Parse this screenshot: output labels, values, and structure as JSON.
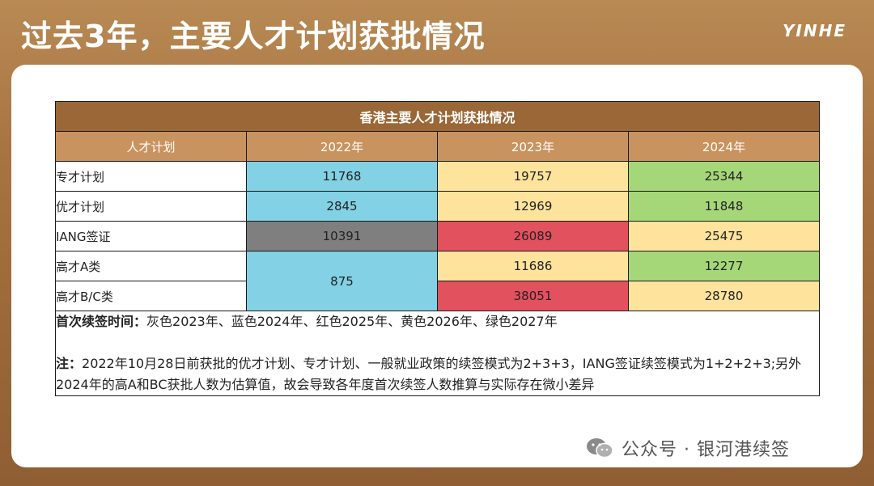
{
  "header": {
    "title": "过去3年，主要人才计划获批情况",
    "logo": "YINHE"
  },
  "table": {
    "caption": "香港主要人才计划获批情况",
    "columns": [
      "人才计划",
      "2022年",
      "2023年",
      "2024年"
    ],
    "rows": [
      {
        "name": "专才计划",
        "v2022": "11768",
        "v2023": "19757",
        "v2024": "25344"
      },
      {
        "name": "优才计划",
        "v2022": "2845",
        "v2023": "12969",
        "v2024": "11848"
      },
      {
        "name": "IANG签证",
        "v2022": "10391",
        "v2023": "26089",
        "v2024": "25475"
      },
      {
        "name": "高才A类",
        "v2022": "875",
        "v2023": "11686",
        "v2024": "12277"
      },
      {
        "name": "高才B/C类",
        "v2023": "38051",
        "v2024": "28780"
      }
    ],
    "colors": {
      "grey": "#7f7f7f",
      "blue": "#82d1e4",
      "red": "#e2515e",
      "yellow": "#fde39c",
      "green": "#a5d779"
    },
    "renewal_label": "首次续签时间：",
    "renewal_text": "灰色2023年、蓝色2024年、红色2025年、黄色2026年、绿色2027年",
    "note_label": "注：",
    "note_text": "2022年10月28日前获批的优才计划、专才计划、一般就业政策的续签模式为2+3+3，IANG签证续签模式为1+2+2+3;另外2024年的高A和BC获批人数为估算值，故会导致各年度首次续签人数推算与实际存在微小差异"
  },
  "watermark": {
    "text": "公众号 · 银河港续签",
    "icon": "wechat-icon"
  }
}
